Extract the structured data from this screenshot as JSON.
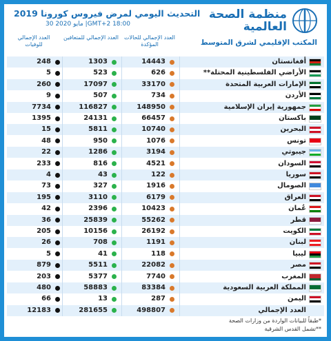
{
  "header": {
    "org_name": "منظمة الصحة العالمية",
    "org_office": "المكتب الإقليمي لشرق المتوسط",
    "title": "التحديث اليومي لمرض فيروس كورونا 2019",
    "date": "30 مايو 2020 |GMT+2 18:00"
  },
  "columns": {
    "deaths": "العدد الإجمالي للوفيات",
    "recovered": "العدد الإجمالي للمتعافين",
    "confirmed": "العدد الإجمالي للحالات المؤكدة"
  },
  "rows": [
    {
      "country": "أفغانستان",
      "confirmed": 14443,
      "recovered": 1303,
      "deaths": 248
    },
    {
      "country": "الأراضي الفلسطينية المحتلة**",
      "confirmed": 626,
      "recovered": 523,
      "deaths": 5
    },
    {
      "country": "الإمارات العربية المتحدة",
      "confirmed": 33170,
      "recovered": 17097,
      "deaths": 260
    },
    {
      "country": "الأردن",
      "confirmed": 734,
      "recovered": 507,
      "deaths": 9
    },
    {
      "country": "جمهورية إيران الإسلامية",
      "confirmed": 148950,
      "recovered": 116827,
      "deaths": 7734
    },
    {
      "country": "باكستان",
      "confirmed": 66457,
      "recovered": 24131,
      "deaths": 1395
    },
    {
      "country": "البحرين",
      "confirmed": 10740,
      "recovered": 5811,
      "deaths": 15
    },
    {
      "country": "تونس",
      "confirmed": 1076,
      "recovered": 950,
      "deaths": 48
    },
    {
      "country": "جيبوتي",
      "confirmed": 3194,
      "recovered": 1286,
      "deaths": 22
    },
    {
      "country": "السودان",
      "confirmed": 4521,
      "recovered": 816,
      "deaths": 233
    },
    {
      "country": "سوريا",
      "confirmed": 122,
      "recovered": 43,
      "deaths": 4
    },
    {
      "country": "الصومال",
      "confirmed": 1916,
      "recovered": 327,
      "deaths": 73
    },
    {
      "country": "العراق",
      "confirmed": 6179,
      "recovered": 3110,
      "deaths": 195
    },
    {
      "country": "عُمان",
      "confirmed": 10423,
      "recovered": 2396,
      "deaths": 42
    },
    {
      "country": "قطر",
      "confirmed": 55262,
      "recovered": 25839,
      "deaths": 36
    },
    {
      "country": "الكويت",
      "confirmed": 26192,
      "recovered": 10156,
      "deaths": 205
    },
    {
      "country": "لبنان",
      "confirmed": 1191,
      "recovered": 708,
      "deaths": 26
    },
    {
      "country": "ليبيا",
      "confirmed": 118,
      "recovered": 41,
      "deaths": 5
    },
    {
      "country": "مصر",
      "confirmed": 22082,
      "recovered": 5511,
      "deaths": 879
    },
    {
      "country": "المغرب",
      "confirmed": 7740,
      "recovered": 5377,
      "deaths": 203
    },
    {
      "country": "المملكة العربية السعودية",
      "confirmed": 83384,
      "recovered": 58883,
      "deaths": 480
    },
    {
      "country": "اليمن",
      "confirmed": 287,
      "recovered": 13,
      "deaths": 66
    }
  ],
  "total": {
    "label": "العدد الإجمالي",
    "confirmed": 498807,
    "recovered": 281655,
    "deaths": 12183
  },
  "footnotes": [
    "*طبقاً للبيانات الواردة من وزارات الصحة",
    "**تشمل القدس الشرقية"
  ]
}
